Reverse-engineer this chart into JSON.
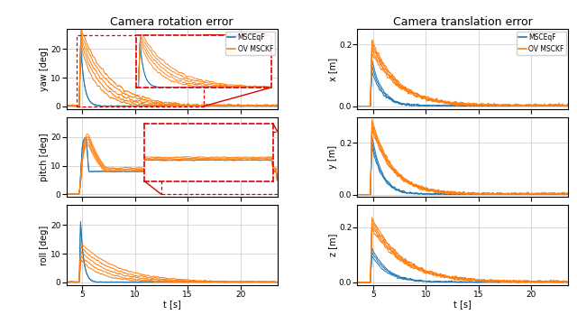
{
  "title_left": "Camera rotation error",
  "title_right": "Camera translation error",
  "xlabel": "t [s]",
  "ylabel_yaw": "yaw [deg]",
  "ylabel_pitch": "pitch [deg]",
  "ylabel_roll": "roll [deg]",
  "ylabel_x": "x [m]",
  "ylabel_y": "y [m]",
  "ylabel_z": "z [m]",
  "color_msceqf": "#1f77b4",
  "color_ovmsckf": "#ff7f0e",
  "color_inset": "#dd0000",
  "legend_labels": [
    "MSCEqF",
    "OV MSCKF"
  ],
  "xlim": [
    3.5,
    23.5
  ],
  "rot_ylim": [
    -1,
    27
  ],
  "rot_yticks": [
    0,
    10,
    20
  ],
  "trans_ylim": [
    -0.01,
    0.26
  ],
  "trans_yticks": [
    0.0,
    0.2
  ],
  "xticks": [
    5,
    10,
    15,
    20
  ]
}
